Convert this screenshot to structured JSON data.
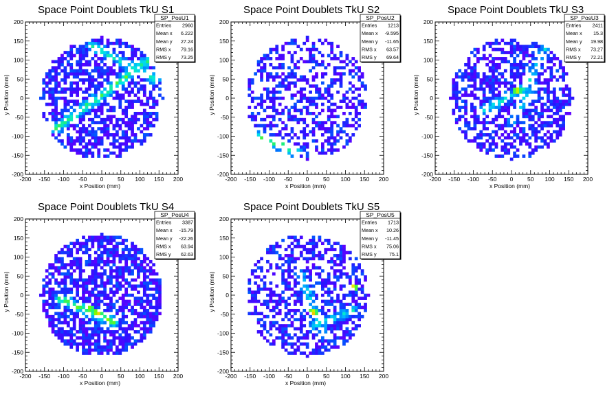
{
  "chart_data": [
    {
      "type": "heatmap",
      "name": "SP_PosU1",
      "title": "Space Point Doublets TkU S1",
      "xlabel": "x Position (mm)",
      "ylabel": "y Position (mm)",
      "xlim": [
        -200,
        200
      ],
      "ylim": [
        -200,
        200
      ],
      "xticks": [
        -200,
        -150,
        -100,
        -50,
        0,
        50,
        100,
        150,
        200
      ],
      "yticks": [
        -200,
        -150,
        -100,
        -50,
        0,
        50,
        100,
        150,
        200
      ],
      "stats": [
        [
          "Entries",
          "2960"
        ],
        [
          "Mean x",
          "6.222"
        ],
        [
          "Mean y",
          "27.24"
        ],
        [
          "RMS x",
          "79.16"
        ],
        [
          "RMS y",
          "73.25"
        ]
      ],
      "circle_radius": 160,
      "occupancy": 0.58,
      "bands": [
        {
          "x1": -120,
          "y1": -80,
          "x2": 150,
          "y2": 120,
          "level": 0.55
        },
        {
          "x1": -30,
          "y1": 140,
          "x2": 140,
          "y2": 50,
          "level": 0.45
        }
      ],
      "hotspots": []
    },
    {
      "type": "heatmap",
      "name": "SP_PosU2",
      "title": "Space Point Doublets TkU S2",
      "xlabel": "x Position (mm)",
      "ylabel": "y Position (mm)",
      "xlim": [
        -200,
        200
      ],
      "ylim": [
        -200,
        200
      ],
      "xticks": [
        -200,
        -150,
        -100,
        -50,
        0,
        50,
        100,
        150,
        200
      ],
      "yticks": [
        -200,
        -150,
        -100,
        -50,
        0,
        50,
        100,
        150,
        200
      ],
      "stats": [
        [
          "Entries",
          "1213"
        ],
        [
          "Mean x",
          "-9.595"
        ],
        [
          "Mean y",
          "-11.65"
        ],
        [
          "RMS x",
          "63.57"
        ],
        [
          "RMS y",
          "69.64"
        ]
      ],
      "circle_radius": 160,
      "occupancy": 0.42,
      "bands": [
        {
          "x1": -130,
          "y1": -100,
          "x2": -30,
          "y2": -140,
          "level": 0.55
        }
      ],
      "hotspots": [
        {
          "x": -75,
          "y": -120,
          "level": 1.0
        }
      ]
    },
    {
      "type": "heatmap",
      "name": "SP_PosU3",
      "title": "Space Point Doublets TkU S3",
      "xlabel": "x Position (mm)",
      "ylabel": "y Position (mm)",
      "xlim": [
        -200,
        200
      ],
      "ylim": [
        -200,
        200
      ],
      "xticks": [
        -200,
        -150,
        -100,
        -50,
        0,
        50,
        100,
        150,
        200
      ],
      "yticks": [
        -200,
        -150,
        -100,
        -50,
        0,
        50,
        100,
        150,
        200
      ],
      "stats": [
        [
          "Entries",
          "2411"
        ],
        [
          "Mean x",
          "15.3"
        ],
        [
          "Mean y",
          "19.98"
        ],
        [
          "RMS x",
          "73.27"
        ],
        [
          "RMS y",
          "72.21"
        ]
      ],
      "circle_radius": 160,
      "occupancy": 0.55,
      "bands": [
        {
          "x1": -70,
          "y1": -30,
          "x2": 40,
          "y2": 30,
          "level": 0.45
        },
        {
          "x1": 40,
          "y1": 30,
          "x2": 90,
          "y2": 140,
          "level": 0.4
        },
        {
          "x1": 0,
          "y1": -60,
          "x2": 60,
          "y2": 40,
          "level": 0.35
        }
      ],
      "hotspots": [
        {
          "x": 15,
          "y": 20,
          "level": 0.95
        }
      ]
    },
    {
      "type": "heatmap",
      "name": "SP_PosU4",
      "title": "Space Point Doublets TkU S4",
      "xlabel": "x Position (mm)",
      "ylabel": "y Position (mm)",
      "xlim": [
        -200,
        200
      ],
      "ylim": [
        -200,
        200
      ],
      "xticks": [
        -200,
        -150,
        -100,
        -50,
        0,
        50,
        100,
        150,
        200
      ],
      "yticks": [
        -200,
        -150,
        -100,
        -50,
        0,
        50,
        100,
        150,
        200
      ],
      "stats": [
        [
          "Entries",
          "3387"
        ],
        [
          "Mean x",
          "-15.79"
        ],
        [
          "Mean y",
          "-22.26"
        ],
        [
          "RMS x",
          "63.94"
        ],
        [
          "RMS y",
          "62.63"
        ]
      ],
      "circle_radius": 160,
      "occupancy": 0.68,
      "bands": [
        {
          "x1": -110,
          "y1": -10,
          "x2": 30,
          "y2": -70,
          "level": 0.6
        }
      ],
      "hotspots": [
        {
          "x": -10,
          "y": -45,
          "level": 1.0
        },
        {
          "x": -30,
          "y": -35,
          "level": 0.85
        }
      ]
    },
    {
      "type": "heatmap",
      "name": "SP_PosU5",
      "title": "Space Point Doublets TkU S5",
      "xlabel": "x Position (mm)",
      "ylabel": "y Position (mm)",
      "xlim": [
        -200,
        200
      ],
      "ylim": [
        -200,
        200
      ],
      "xticks": [
        -200,
        -150,
        -100,
        -50,
        0,
        50,
        100,
        150,
        200
      ],
      "yticks": [
        -200,
        -150,
        -100,
        -50,
        0,
        50,
        100,
        150,
        200
      ],
      "stats": [
        [
          "Entries",
          "1713"
        ],
        [
          "Mean x",
          "10.26"
        ],
        [
          "Mean y",
          "-11.45"
        ],
        [
          "RMS x",
          "75.06"
        ],
        [
          "RMS y",
          "75.1"
        ]
      ],
      "circle_radius": 160,
      "occupancy": 0.5,
      "bands": [
        {
          "x1": -20,
          "y1": 60,
          "x2": 40,
          "y2": -100,
          "level": 0.4
        },
        {
          "x1": 20,
          "y1": -80,
          "x2": 120,
          "y2": -40,
          "level": 0.4
        }
      ],
      "hotspots": [
        {
          "x": 15,
          "y": -45,
          "level": 1.0
        },
        {
          "x": 120,
          "y": 20,
          "level": 1.0
        }
      ]
    }
  ]
}
